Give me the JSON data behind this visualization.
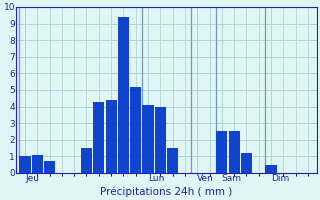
{
  "bar_values": [
    1.0,
    1.1,
    0.7,
    0.0,
    0.0,
    1.5,
    4.3,
    4.4,
    9.4,
    5.2,
    4.1,
    4.0,
    1.5,
    0.0,
    0.0,
    0.0,
    2.5,
    2.5,
    1.2,
    0.0,
    0.5,
    0.0,
    0.0,
    0.0
  ],
  "bar_color": "#1144cc",
  "bg_color": "#e0f5f5",
  "grid_color": "#aacfcf",
  "axis_color": "#2222aa",
  "xlabel": "Précipitations 24h ( mm )",
  "xlabel_color": "#2222aa",
  "ylim": [
    0,
    10
  ],
  "yticks": [
    0,
    1,
    2,
    3,
    4,
    5,
    6,
    7,
    8,
    9,
    10
  ],
  "day_labels": [
    "Jeu",
    "Lun",
    "Ven",
    "Sam",
    "Dim"
  ],
  "day_tick_positions": [
    0,
    10,
    14,
    16,
    20
  ],
  "vline_positions": [
    0,
    10,
    14,
    16,
    20
  ],
  "n_bars": 24
}
